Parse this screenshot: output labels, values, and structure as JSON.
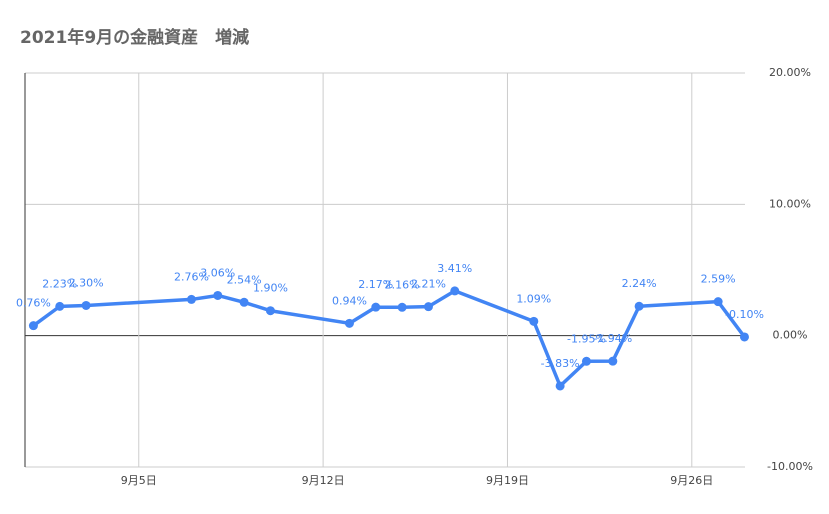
{
  "chart_data": {
    "type": "line",
    "title": "2021年9月の金融資産　増減",
    "x": [
      1,
      2,
      3,
      7,
      8,
      9,
      10,
      13,
      14,
      15,
      16,
      17,
      20,
      21,
      22,
      23,
      24,
      27,
      28
    ],
    "series": [
      {
        "name": "増減",
        "color": "#4285f4",
        "values": [
          0.76,
          2.23,
          2.3,
          2.76,
          3.06,
          2.54,
          1.9,
          0.94,
          2.17,
          2.16,
          2.21,
          3.41,
          1.09,
          -3.83,
          -1.95,
          -1.94,
          2.24,
          2.59,
          -0.1
        ],
        "value_labels": [
          "0.76%",
          "2.23%",
          "2.30%",
          "2.76%",
          "3.06%",
          "2.54%",
          "1.90%",
          "0.94%",
          "2.17%",
          "2.16%",
          "2.21%",
          "3.41%",
          "1.09%",
          "-3.83%",
          "-1.95%",
          "-1.94%",
          "2.24%",
          "2.59%",
          "-0.10%"
        ]
      }
    ],
    "xlim": [
      0.68,
      28.02
    ],
    "xticks": [
      {
        "value": 5,
        "label": "9月5日"
      },
      {
        "value": 12,
        "label": "9月12日"
      },
      {
        "value": 19,
        "label": "9月19日"
      },
      {
        "value": 26,
        "label": "9月26日"
      }
    ],
    "ylim": [
      -10,
      20
    ],
    "yticks": [
      {
        "value": -10,
        "label": "-10.00%"
      },
      {
        "value": 0,
        "label": "0.00%"
      },
      {
        "value": 10,
        "label": "10.00%"
      },
      {
        "value": 20,
        "label": "20.00%"
      }
    ],
    "y_axis_side": "right",
    "grid": true
  }
}
